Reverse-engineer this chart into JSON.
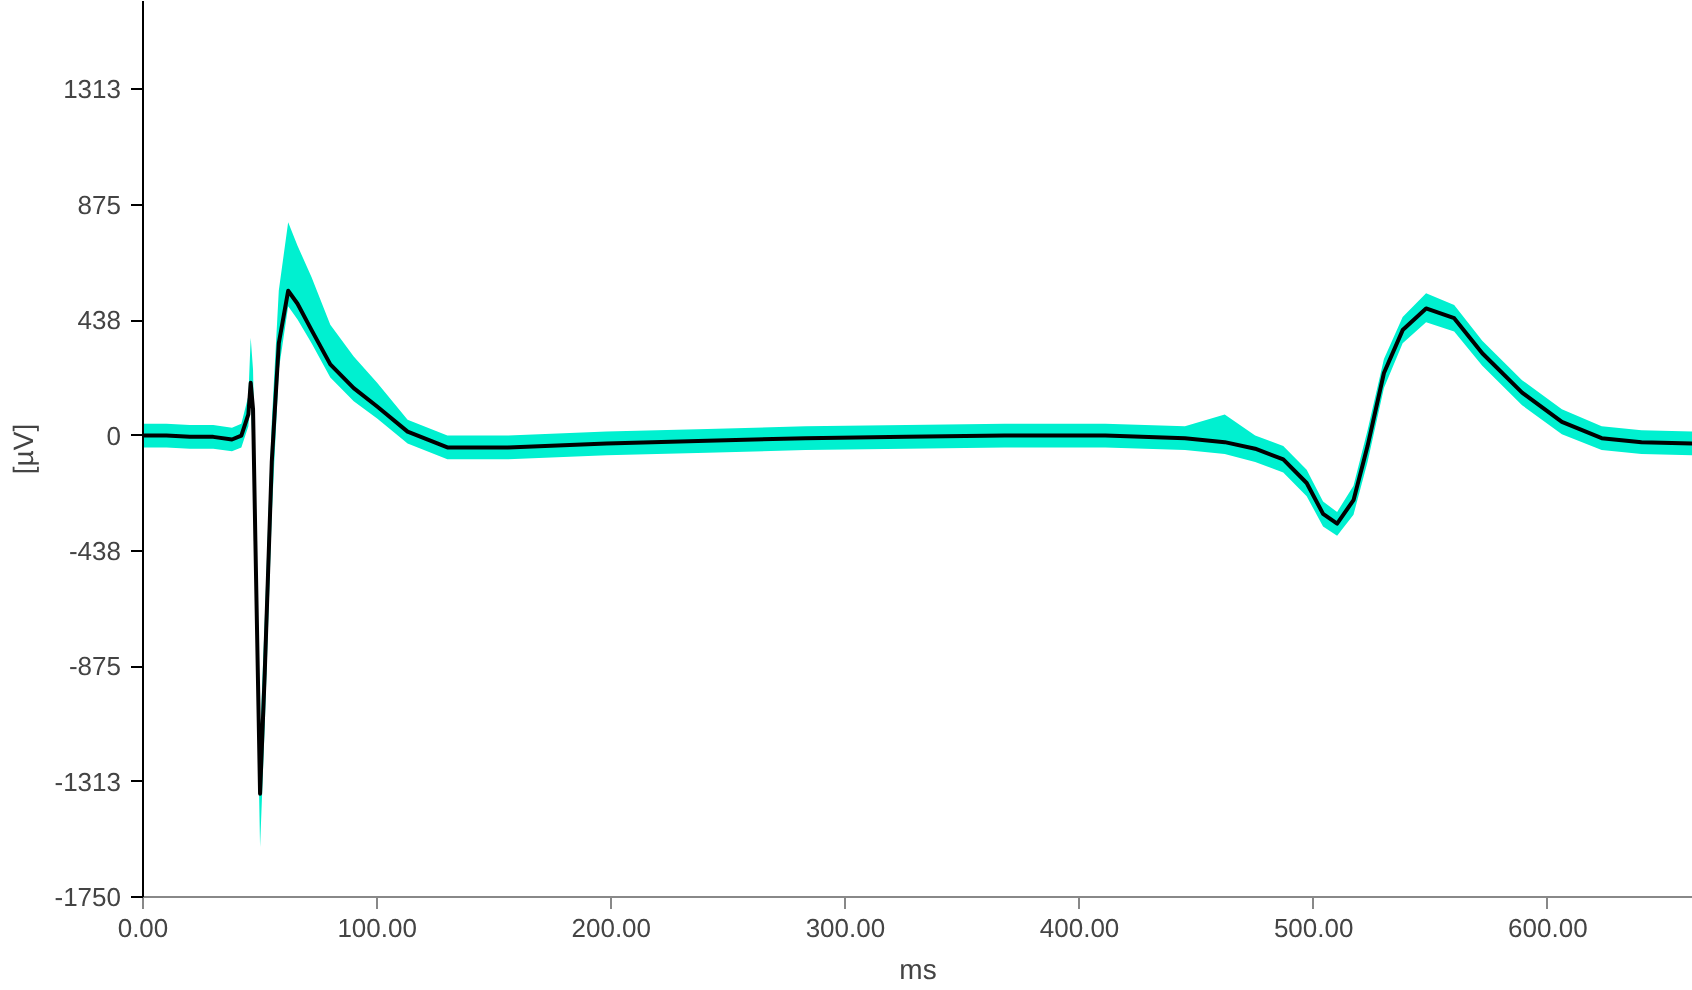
{
  "chart_data": {
    "type": "line",
    "xlabel": "ms",
    "ylabel": "[µV]",
    "x": [
      0,
      10,
      20,
      30,
      38,
      42,
      45,
      46,
      47,
      48,
      50,
      52,
      55,
      58,
      62,
      66,
      72,
      80,
      90,
      100,
      113,
      130,
      156,
      198,
      241,
      283,
      326,
      368,
      411,
      445,
      462,
      475,
      487,
      497,
      504,
      510,
      517,
      523,
      530,
      538,
      548,
      560,
      572,
      589,
      606,
      623,
      640,
      662
    ],
    "series": [
      {
        "color": "#000000",
        "values": [
          0,
          0,
          -5,
          -5,
          -15,
          0,
          80,
          200,
          100,
          -400,
          -1358,
          -900,
          -100,
          350,
          549,
          500,
          400,
          270,
          180,
          110,
          15,
          -45,
          -45,
          -30,
          -20,
          -10,
          -5,
          0,
          0,
          -10,
          -25,
          -50,
          -90,
          -180,
          -297,
          -334,
          -245,
          -40,
          237,
          400,
          482,
          445,
          312,
          163,
          52,
          -10,
          -25,
          -30
        ],
        "lower": [
          -45,
          -45,
          -50,
          -50,
          -60,
          -45,
          35,
          150,
          -100,
          -600,
          -1560,
          -1100,
          -300,
          250,
          490,
          440,
          350,
          220,
          130,
          65,
          -30,
          -90,
          -90,
          -75,
          -65,
          -55,
          -50,
          -45,
          -45,
          -55,
          -70,
          -100,
          -140,
          -230,
          -345,
          -380,
          -300,
          -100,
          180,
          350,
          430,
          395,
          265,
          115,
          5,
          -55,
          -70,
          -75
        ],
        "upper": [
          45,
          45,
          40,
          40,
          30,
          45,
          150,
          371,
          250,
          -200,
          -1150,
          -700,
          50,
          550,
          809,
          720,
          600,
          420,
          300,
          200,
          60,
          0,
          0,
          15,
          25,
          35,
          40,
          45,
          45,
          35,
          80,
          0,
          -40,
          -130,
          -250,
          -290,
          -190,
          20,
          290,
          450,
          540,
          495,
          360,
          210,
          100,
          35,
          20,
          15
        ]
      }
    ],
    "xlim": [
      0,
      662
    ],
    "ylim": [
      -1750,
      1648
    ],
    "xticks": [
      {
        "value": 0,
        "label": "0.00"
      },
      {
        "value": 100,
        "label": "100.00"
      },
      {
        "value": 200,
        "label": "200.00"
      },
      {
        "value": 300,
        "label": "300.00"
      },
      {
        "value": 400,
        "label": "400.00"
      },
      {
        "value": 500,
        "label": "500.00"
      },
      {
        "value": 600,
        "label": "600.00"
      }
    ],
    "yticks": [
      -1750,
      -1313,
      -875,
      -438,
      0,
      438,
      875,
      1313
    ],
    "grid": false,
    "marker": "none",
    "line_style": "solid"
  }
}
